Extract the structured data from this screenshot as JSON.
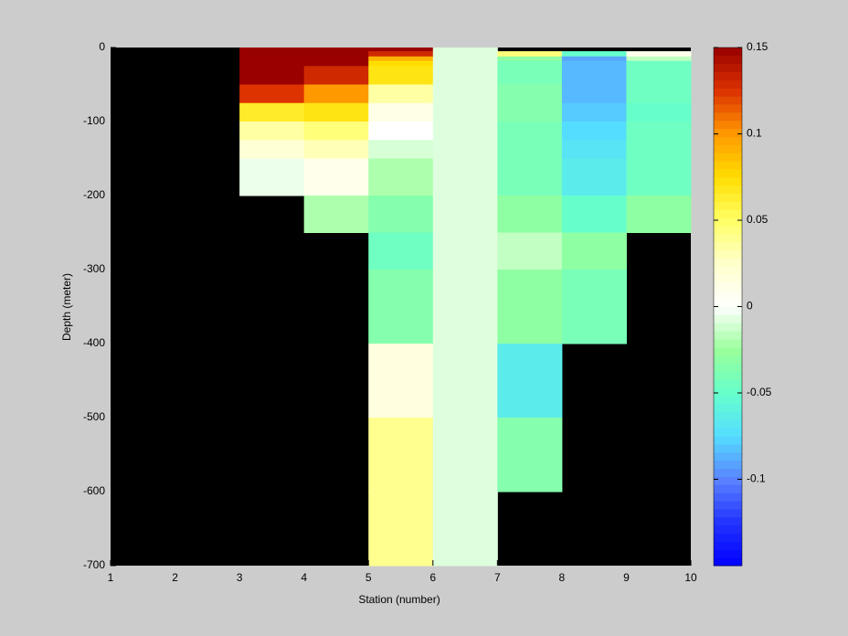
{
  "chart_data": {
    "type": "heatmap",
    "xlabel": "Station (number)",
    "ylabel": "Depth (meter)",
    "x_edges": [
      1,
      2,
      3,
      4,
      5,
      6,
      7,
      8,
      9,
      10
    ],
    "y_edges": [
      0,
      -5,
      -12,
      -18,
      -25,
      -50,
      -75,
      -100,
      -125,
      -150,
      -200,
      -250,
      -300,
      -400,
      -500,
      -600,
      -700
    ],
    "z": [
      [
        null,
        null,
        0.15,
        0.15,
        0.15,
        -0.008,
        null,
        null,
        null
      ],
      [
        null,
        null,
        0.15,
        0.15,
        0.13,
        -0.008,
        0.045,
        -0.05,
        0.01
      ],
      [
        null,
        null,
        0.15,
        0.15,
        0.09,
        -0.008,
        -0.03,
        -0.09,
        -0.015
      ],
      [
        null,
        null,
        0.15,
        0.15,
        0.075,
        -0.008,
        -0.04,
        -0.085,
        -0.045
      ],
      [
        null,
        null,
        0.15,
        0.13,
        0.07,
        -0.008,
        -0.04,
        -0.085,
        -0.045
      ],
      [
        null,
        null,
        0.125,
        0.1,
        0.035,
        -0.008,
        -0.035,
        -0.085,
        -0.045
      ],
      [
        null,
        null,
        0.065,
        0.07,
        0.012,
        -0.008,
        -0.035,
        -0.08,
        -0.05
      ],
      [
        null,
        null,
        0.035,
        0.045,
        0,
        -0.008,
        -0.04,
        -0.075,
        -0.045
      ],
      [
        null,
        null,
        0.02,
        0.03,
        -0.01,
        -0.008,
        -0.04,
        -0.07,
        -0.045
      ],
      [
        null,
        null,
        -0.005,
        0.01,
        -0.02,
        -0.008,
        -0.04,
        -0.065,
        -0.045
      ],
      [
        null,
        null,
        null,
        -0.02,
        -0.035,
        -0.008,
        -0.03,
        -0.05,
        -0.03
      ],
      [
        null,
        null,
        null,
        null,
        -0.045,
        -0.008,
        -0.015,
        -0.03,
        null
      ],
      [
        null,
        null,
        null,
        null,
        -0.035,
        -0.008,
        -0.03,
        -0.04,
        null
      ],
      [
        null,
        null,
        null,
        null,
        0.015,
        -0.008,
        -0.065,
        null,
        null
      ],
      [
        null,
        null,
        null,
        null,
        0.04,
        -0.008,
        -0.035,
        null,
        null
      ],
      [
        null,
        null,
        null,
        null,
        0.04,
        -0.008,
        null,
        null,
        null
      ]
    ],
    "xlim": [
      1,
      10
    ],
    "xticks": [
      1,
      2,
      3,
      4,
      5,
      6,
      7,
      8,
      9,
      10
    ],
    "ylim": [
      -700,
      0
    ],
    "yticks": [
      -700,
      -600,
      -500,
      -400,
      -300,
      -200,
      -100,
      0
    ],
    "clim": [
      -0.15,
      0.15
    ],
    "cticks": [
      -0.1,
      -0.05,
      0,
      0.05,
      0.1,
      0.15
    ],
    "colormap": [
      "#0000ff",
      "#2233ff",
      "#5a82ff",
      "#55ddff",
      "#66ffcc",
      "#99ff99",
      "#ffffff",
      "#ffffcc",
      "#ffff66",
      "#ffdd00",
      "#ff9900",
      "#dd3300",
      "#990000"
    ],
    "nan_color": "#000000"
  }
}
